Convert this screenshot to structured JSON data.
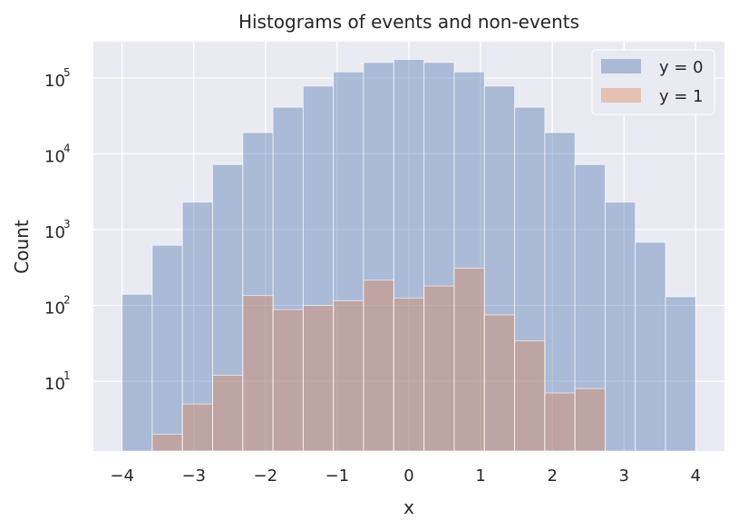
{
  "chart_data": {
    "type": "bar",
    "title": "Histograms of events and non-events",
    "xlabel": "x",
    "ylabel": "Count",
    "xlim": [
      -4.4,
      4.4
    ],
    "ylim": [
      1.2,
      300000
    ],
    "yscale": "log",
    "grid": true,
    "legend_position": "top-right",
    "xticks": [
      -4,
      -3,
      -2,
      -1,
      0,
      1,
      2,
      3,
      4
    ],
    "xtick_labels": [
      "−4",
      "−3",
      "−2",
      "−1",
      "0",
      "1",
      "2",
      "3",
      "4"
    ],
    "yticks": [
      {
        "value": 10,
        "base": "10",
        "exp": "1"
      },
      {
        "value": 100,
        "base": "10",
        "exp": "2"
      },
      {
        "value": 1000,
        "base": "10",
        "exp": "3"
      },
      {
        "value": 10000,
        "base": "10",
        "exp": "4"
      },
      {
        "value": 100000,
        "base": "10",
        "exp": "5"
      }
    ],
    "bin_edges": [
      -4.0,
      -3.579,
      -3.158,
      -2.737,
      -2.316,
      -1.895,
      -1.474,
      -1.053,
      -0.632,
      -0.211,
      0.211,
      0.632,
      1.053,
      1.474,
      1.895,
      2.316,
      2.737,
      3.158,
      3.579,
      4.0
    ],
    "series": [
      {
        "name": "y = 0",
        "color": "#4c72b0",
        "values": [
          140,
          620,
          2300,
          7200,
          19000,
          41000,
          78000,
          120000,
          160000,
          175000,
          160000,
          120000,
          78000,
          41000,
          19000,
          7200,
          2300,
          680,
          130
        ]
      },
      {
        "name": "y = 1",
        "color": "#dd8452",
        "values": [
          0,
          2,
          5,
          12,
          135,
          88,
          100,
          115,
          215,
          125,
          180,
          310,
          75,
          34,
          7,
          8,
          0,
          0,
          0
        ]
      }
    ]
  }
}
